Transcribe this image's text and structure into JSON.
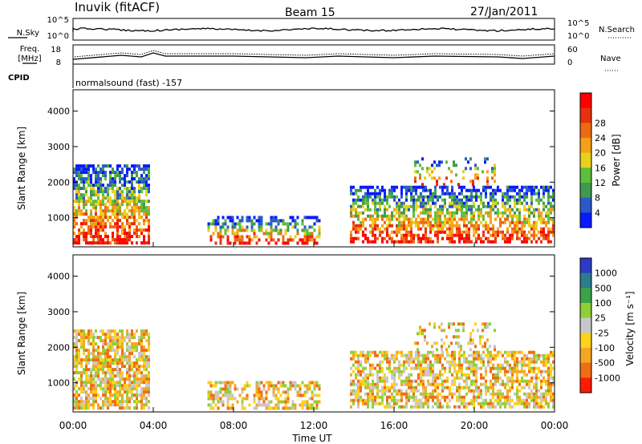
{
  "header": {
    "station": "Inuvik (fitACF)",
    "beam": "Beam 15",
    "date": "27/Jan/2011"
  },
  "top_panels": {
    "nsky_label": "N.Sky",
    "nsky_ticks": [
      "10^5",
      "10^0"
    ],
    "nsearch_label": "N.Search",
    "nsearch_ticks": [
      "10^5",
      "10^0"
    ],
    "freq_label_1": "Freq.",
    "freq_label_2": "[MHz]",
    "freq_ticks": [
      "18",
      "8"
    ],
    "nave_label": "Nave",
    "nave_ticks": [
      "60",
      "0"
    ],
    "cpid_label": "CPID",
    "cpid_text": "normalsound (fast) -157"
  },
  "chart_data": [
    {
      "type": "heatmap",
      "name": "power",
      "ylabel": "Slant Range [km]",
      "ylim": [
        180,
        4600
      ],
      "yticks": [
        1000,
        2000,
        3000,
        4000
      ],
      "xlim": [
        0,
        24
      ],
      "colorbar_label": "Power [dB]",
      "colorbar_ticks": [
        "4",
        "8",
        "12",
        "16",
        "20",
        "24",
        "28"
      ],
      "colorbar_colors": [
        "#0a1aff",
        "#2c59c9",
        "#3d9a4f",
        "#5ebf3c",
        "#e8d11b",
        "#f5a018",
        "#ee6a12",
        "#e8300f",
        "#ff0000"
      ],
      "scatter_regions": [
        {
          "t": [
            0.0,
            3.8
          ],
          "r": [
            300,
            2500
          ],
          "fill": 0.7
        },
        {
          "t": [
            6.7,
            12.3
          ],
          "r": [
            300,
            1050
          ],
          "fill": 0.55
        },
        {
          "t": [
            13.8,
            24.0
          ],
          "r": [
            300,
            1900
          ],
          "fill": 0.65
        },
        {
          "t": [
            17.0,
            21.0
          ],
          "r": [
            1900,
            2700
          ],
          "fill": 0.25
        }
      ]
    },
    {
      "type": "heatmap",
      "name": "velocity",
      "ylabel": "Slant Range [km]",
      "ylim": [
        180,
        4600
      ],
      "yticks": [
        1000,
        2000,
        3000,
        4000
      ],
      "xlim": [
        0,
        24
      ],
      "xticks": [
        "00:00",
        "04:00",
        "08:00",
        "12:00",
        "16:00",
        "20:00",
        "00:00"
      ],
      "xlabel": "Time UT",
      "colorbar_label": "Velocity [m s⁻¹]",
      "colorbar_ticks": [
        "1000",
        "500",
        "100",
        "25",
        "-25",
        "-100",
        "-500",
        "-1000"
      ],
      "colorbar_colors": [
        "#2b3bc8",
        "#2b7d8a",
        "#3ba24a",
        "#8fd039",
        "#c8c8c8",
        "#ffd21a",
        "#f5a623",
        "#ef6e14",
        "#ff1a00"
      ],
      "scatter_regions": [
        {
          "t": [
            0.0,
            3.8
          ],
          "r": [
            300,
            2500
          ],
          "fill": 0.75
        },
        {
          "t": [
            6.7,
            12.3
          ],
          "r": [
            300,
            1050
          ],
          "fill": 0.6
        },
        {
          "t": [
            13.8,
            24.0
          ],
          "r": [
            300,
            1900
          ],
          "fill": 0.65
        },
        {
          "t": [
            17.0,
            21.0
          ],
          "r": [
            1900,
            2700
          ],
          "fill": 0.3
        }
      ]
    }
  ]
}
